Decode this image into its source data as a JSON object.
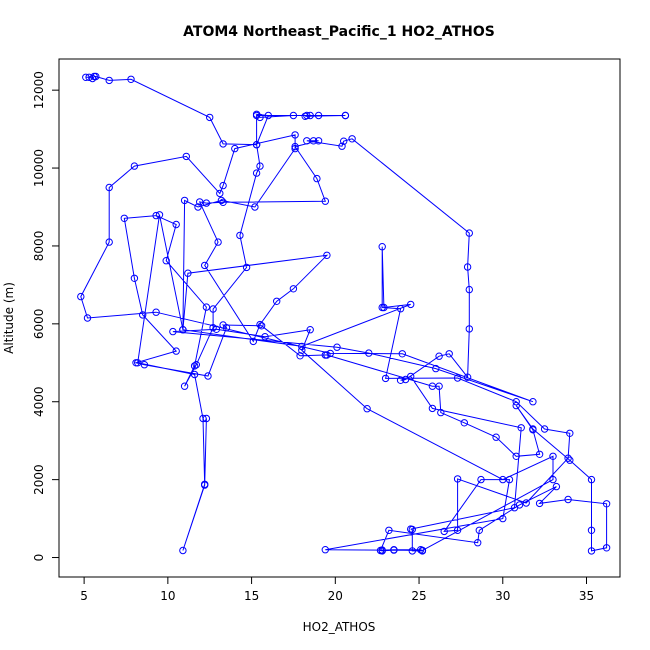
{
  "chart_data": {
    "type": "line",
    "title": "ATOM4 Northeast_Pacific_1 HO2_ATHOS",
    "xlabel": "HO2_ATHOS",
    "ylabel": "Altitude (m)",
    "xlim": [
      3.5,
      37.0
    ],
    "ylim": [
      -500,
      12800
    ],
    "x_ticks": [
      5,
      10,
      15,
      20,
      25,
      30,
      35
    ],
    "y_ticks": [
      0,
      2000,
      4000,
      6000,
      8000,
      10000,
      12000
    ],
    "grid": false,
    "legend": "none",
    "color": "#0000ff",
    "marker": "open-circle",
    "series": [
      {
        "points": [
          [
            5.1,
            12330
          ],
          [
            5.3,
            12330
          ],
          [
            5.5,
            12300
          ],
          [
            5.6,
            12350
          ],
          [
            5.7,
            12350
          ],
          [
            6.5,
            12250
          ],
          [
            7.8,
            12280
          ],
          [
            12.5,
            11300
          ],
          [
            13.3,
            10620
          ],
          [
            15.3,
            10600
          ],
          [
            16.0,
            11350
          ],
          [
            15.3,
            11380
          ],
          [
            15.5,
            11300
          ],
          [
            17.5,
            11350
          ],
          [
            18.3,
            11350
          ],
          [
            18.5,
            11350
          ],
          [
            19.0,
            11350
          ],
          [
            18.2,
            11330
          ],
          [
            20.6,
            11350
          ],
          [
            20.6,
            11350
          ],
          [
            15.3,
            11350
          ],
          [
            15.3,
            10600
          ],
          [
            15.5,
            10050
          ],
          [
            15.3,
            9870
          ],
          [
            14.3,
            8270
          ],
          [
            14.7,
            7450
          ],
          [
            12.7,
            6380
          ],
          [
            12.7,
            5900
          ],
          [
            11.7,
            4950
          ],
          [
            11.0,
            4400
          ],
          [
            11.6,
            4920
          ],
          [
            12.3,
            6430
          ],
          [
            9.9,
            7620
          ],
          [
            10.5,
            8550
          ],
          [
            9.3,
            8780
          ],
          [
            7.4,
            8710
          ],
          [
            8.0,
            7170
          ],
          [
            8.5,
            6230
          ],
          [
            10.5,
            5300
          ],
          [
            8.1,
            5000
          ],
          [
            8.6,
            4950
          ],
          [
            12.4,
            4660
          ],
          [
            13.5,
            5900
          ],
          [
            13.3,
            5970
          ],
          [
            15.6,
            5950
          ],
          [
            17.9,
            5180
          ],
          [
            19.4,
            5200
          ],
          [
            19.5,
            5200
          ],
          [
            25.8,
            4400
          ],
          [
            26.2,
            4400
          ],
          [
            26.3,
            3720
          ],
          [
            27.7,
            3460
          ],
          [
            29.6,
            3090
          ],
          [
            30.8,
            2600
          ],
          [
            32.2,
            2650
          ],
          [
            31.8,
            3280
          ],
          [
            30.8,
            3900
          ],
          [
            31.8,
            3300
          ],
          [
            34.0,
            2500
          ],
          [
            35.3,
            2000
          ],
          [
            35.3,
            700
          ],
          [
            35.3,
            170
          ],
          [
            36.2,
            250
          ],
          [
            36.2,
            1380
          ],
          [
            33.9,
            1490
          ],
          [
            32.2,
            1390
          ],
          [
            33.2,
            1820
          ],
          [
            31.0,
            1350
          ],
          [
            28.6,
            700
          ],
          [
            28.5,
            380
          ],
          [
            23.2,
            700
          ],
          [
            22.7,
            180
          ],
          [
            22.8,
            170
          ],
          [
            23.5,
            190
          ],
          [
            25.2,
            180
          ],
          [
            25.2,
            170
          ],
          [
            24.6,
            170
          ],
          [
            24.6,
            720
          ],
          [
            24.5,
            730
          ],
          [
            30.7,
            1280
          ],
          [
            31.1,
            3330
          ],
          [
            25.8,
            3830
          ],
          [
            24.5,
            4650
          ],
          [
            23.9,
            4550
          ],
          [
            24.2,
            4570
          ],
          [
            26.2,
            5170
          ],
          [
            26.8,
            5230
          ],
          [
            27.9,
            4630
          ],
          [
            28.0,
            5870
          ],
          [
            28.0,
            6880
          ],
          [
            27.9,
            7460
          ],
          [
            28.0,
            8330
          ],
          [
            21.0,
            10750
          ],
          [
            20.5,
            10690
          ],
          [
            20.4,
            10560
          ],
          [
            18.3,
            10700
          ],
          [
            18.7,
            10700
          ],
          [
            19.0,
            10700
          ],
          [
            17.6,
            10550
          ],
          [
            18.9,
            9730
          ],
          [
            19.4,
            9150
          ],
          [
            13.3,
            9120
          ],
          [
            12.3,
            9100
          ],
          [
            11.9,
            9130
          ],
          [
            13.0,
            8100
          ],
          [
            12.2,
            7500
          ],
          [
            15.1,
            5550
          ],
          [
            15.5,
            5980
          ],
          [
            16.5,
            6580
          ],
          [
            17.5,
            6900
          ],
          [
            19.5,
            7760
          ],
          [
            11.2,
            7300
          ],
          [
            10.9,
            5850
          ],
          [
            18.0,
            5420
          ],
          [
            24.5,
            6500
          ],
          [
            22.9,
            6420
          ],
          [
            22.8,
            7980
          ],
          [
            22.8,
            6420
          ],
          [
            23.9,
            6390
          ],
          [
            23.0,
            4600
          ],
          [
            27.3,
            4610
          ],
          [
            30.8,
            4000
          ],
          [
            32.5,
            3300
          ],
          [
            34.0,
            3190
          ],
          [
            33.9,
            2550
          ],
          [
            31.4,
            1400
          ],
          [
            27.3,
            2020
          ],
          [
            27.3,
            700
          ],
          [
            26.5,
            670
          ],
          [
            28.7,
            2000
          ],
          [
            30.4,
            2000
          ],
          [
            30.0,
            1000
          ],
          [
            19.4,
            200
          ],
          [
            22.8,
            190
          ],
          [
            23.5,
            200
          ],
          [
            25.1,
            200
          ],
          [
            25.2,
            180
          ],
          [
            33.0,
            2000
          ],
          [
            33.0,
            2600
          ],
          [
            30.0,
            2000
          ],
          [
            21.9,
            3820
          ],
          [
            18.0,
            5320
          ],
          [
            18.5,
            5850
          ],
          [
            15.8,
            5670
          ],
          [
            12.9,
            5860
          ],
          [
            10.3,
            5800
          ],
          [
            20.1,
            5400
          ],
          [
            22.0,
            5250
          ],
          [
            26.0,
            4850
          ],
          [
            31.8,
            4000
          ],
          [
            24.0,
            5230
          ],
          [
            19.7,
            5240
          ],
          [
            9.3,
            6300
          ],
          [
            5.2,
            6150
          ],
          [
            4.8,
            6700
          ],
          [
            6.5,
            8100
          ],
          [
            6.5,
            9500
          ],
          [
            8.0,
            10050
          ],
          [
            11.1,
            10300
          ],
          [
            13.1,
            9350
          ],
          [
            13.3,
            9550
          ],
          [
            14.0,
            10500
          ],
          [
            17.6,
            10850
          ],
          [
            17.6,
            10500
          ],
          [
            15.2,
            9000
          ],
          [
            13.2,
            9170
          ],
          [
            11.8,
            9000
          ],
          [
            11.0,
            9170
          ],
          [
            10.9,
            5850
          ],
          [
            9.5,
            8800
          ],
          [
            8.2,
            5000
          ],
          [
            11.6,
            4700
          ],
          [
            12.1,
            3570
          ],
          [
            12.2,
            1860
          ],
          [
            10.9,
            180
          ],
          [
            12.2,
            1880
          ],
          [
            12.3,
            3570
          ]
        ]
      }
    ]
  }
}
